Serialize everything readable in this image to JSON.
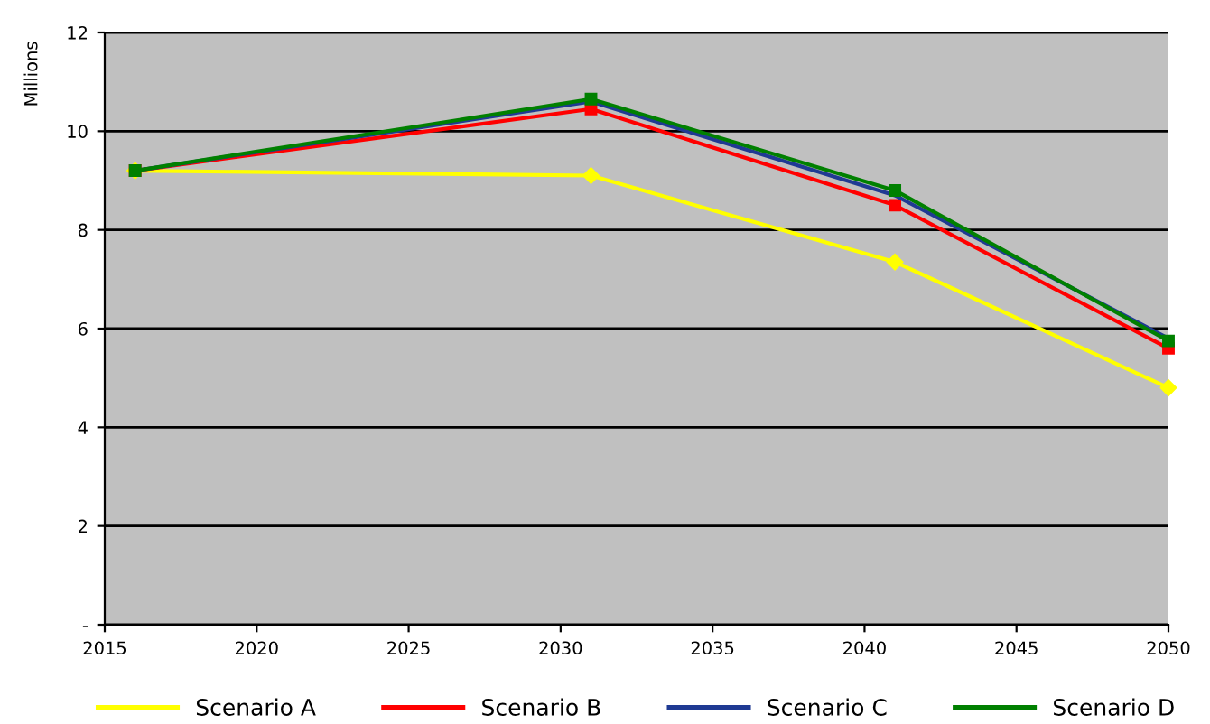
{
  "chart_data": {
    "type": "line",
    "ylabel": "Millions",
    "x": [
      2016,
      2031,
      2041,
      2050
    ],
    "xlim": [
      2015,
      2050
    ],
    "xticks": [
      2015,
      2020,
      2025,
      2030,
      2035,
      2040,
      2045,
      2050
    ],
    "ylim": [
      0,
      12
    ],
    "yticks": [
      {
        "value": 0,
        "label": "-"
      },
      2,
      4,
      6,
      8,
      10,
      12
    ],
    "grid": "y",
    "legend": "bottom",
    "series": [
      {
        "name": "Scenario A",
        "color": "#ffff00",
        "marker": "diamond",
        "values": [
          9.2,
          9.1,
          7.35,
          4.8
        ]
      },
      {
        "name": "Scenario B",
        "color": "#ff0000",
        "marker": "square",
        "values": [
          9.2,
          10.45,
          8.5,
          5.6
        ]
      },
      {
        "name": "Scenario C",
        "color": "#1f3a93",
        "marker": "none",
        "values": [
          9.2,
          10.6,
          8.7,
          5.8
        ]
      },
      {
        "name": "Scenario D",
        "color": "#008000",
        "marker": "square",
        "values": [
          9.2,
          10.65,
          8.8,
          5.75
        ]
      }
    ]
  }
}
